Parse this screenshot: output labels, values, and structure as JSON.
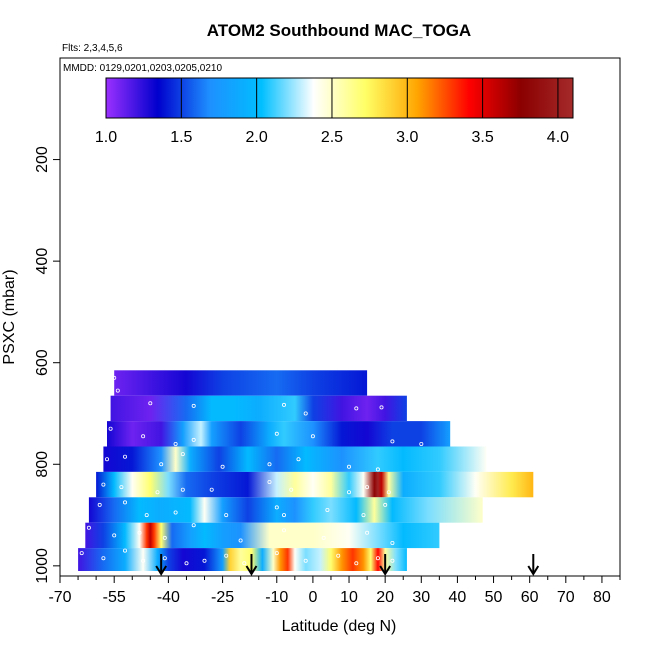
{
  "chart_data": {
    "type": "heatmap",
    "title": "ATOM2 Southbound MAC_TOGA",
    "flights_label": "Flts: 2,3,4,5,6",
    "dates_label": "MMDD: 0129,0201,0203,0205,0210",
    "xlabel": "Latitude (deg N)",
    "ylabel": "PSXC (mbar)",
    "xlim": [
      -70,
      85
    ],
    "ylim": [
      1020,
      0
    ],
    "x_ticks": [
      -70,
      -55,
      -40,
      -25,
      -10,
      0,
      10,
      20,
      30,
      40,
      50,
      60,
      70,
      80
    ],
    "x_ticks_minor": [
      -65,
      -60,
      -50,
      -45,
      -35,
      -30,
      -20,
      -15,
      -5,
      5,
      15,
      25,
      35,
      45,
      55,
      65,
      75,
      85
    ],
    "y_ticks": [
      200,
      400,
      600,
      800,
      1000
    ],
    "colorbar": {
      "range": [
        1.0,
        4.1
      ],
      "ticks": [
        1.0,
        1.5,
        2.0,
        2.5,
        3.0,
        3.5,
        4.0
      ],
      "tick_labels": [
        "1.0",
        "1.5",
        "2.0",
        "2.5",
        "3.0",
        "3.5",
        "4.0"
      ],
      "colors": [
        "#9b30ff",
        "#0000cd",
        "#1e90ff",
        "#00bfff",
        "#ffffff",
        "#ffff66",
        "#ffa500",
        "#ff0000",
        "#8b0000",
        "#a52a2a"
      ]
    },
    "rows": [
      {
        "p_top": 615,
        "p_bot": 665,
        "lat_start": -55,
        "lat_end": 15,
        "stops": [
          [
            -55,
            1.1
          ],
          [
            -45,
            1.2
          ],
          [
            -35,
            1.3
          ],
          [
            -25,
            1.5
          ],
          [
            -10,
            1.6
          ],
          [
            0,
            1.5
          ],
          [
            15,
            1.4
          ]
        ]
      },
      {
        "p_top": 665,
        "p_bot": 715,
        "lat_start": -56,
        "lat_end": 26,
        "stops": [
          [
            -56,
            1.2
          ],
          [
            -45,
            1.1
          ],
          [
            -35,
            1.6
          ],
          [
            -28,
            2.0
          ],
          [
            -22,
            2.0
          ],
          [
            -15,
            1.9
          ],
          [
            -5,
            2.1
          ],
          [
            0,
            1.5
          ],
          [
            8,
            1.2
          ],
          [
            15,
            1.1
          ],
          [
            20,
            1.2
          ],
          [
            26,
            1.5
          ]
        ]
      },
      {
        "p_top": 715,
        "p_bot": 765,
        "lat_start": -57,
        "lat_end": 38,
        "stops": [
          [
            -57,
            1.3
          ],
          [
            -50,
            1.1
          ],
          [
            -42,
            1.2
          ],
          [
            -36,
            1.8
          ],
          [
            -31,
            2.3
          ],
          [
            -28,
            1.8
          ],
          [
            -20,
            1.5
          ],
          [
            -12,
            1.9
          ],
          [
            -8,
            2.1
          ],
          [
            0,
            1.7
          ],
          [
            8,
            1.4
          ],
          [
            15,
            1.3
          ],
          [
            22,
            1.5
          ],
          [
            30,
            1.5
          ],
          [
            38,
            1.8
          ]
        ]
      },
      {
        "p_top": 765,
        "p_bot": 815,
        "lat_start": -58,
        "lat_end": 48,
        "stops": [
          [
            -58,
            1.3
          ],
          [
            -50,
            1.4
          ],
          [
            -42,
            1.7
          ],
          [
            -38,
            2.5
          ],
          [
            -34,
            1.9
          ],
          [
            -26,
            1.5
          ],
          [
            -18,
            2.0
          ],
          [
            -10,
            1.6
          ],
          [
            -2,
            2.0
          ],
          [
            8,
            1.7
          ],
          [
            18,
            2.1
          ],
          [
            25,
            2.0
          ],
          [
            35,
            2.1
          ],
          [
            48,
            2.4
          ]
        ]
      },
      {
        "p_top": 815,
        "p_bot": 865,
        "lat_start": -60,
        "lat_end": 61,
        "stops": [
          [
            -60,
            1.4
          ],
          [
            -55,
            2.0
          ],
          [
            -50,
            2.4
          ],
          [
            -45,
            2.7
          ],
          [
            -40,
            2.2
          ],
          [
            -35,
            1.6
          ],
          [
            -28,
            1.5
          ],
          [
            -18,
            1.4
          ],
          [
            -10,
            2.3
          ],
          [
            -5,
            2.6
          ],
          [
            0,
            2.4
          ],
          [
            5,
            2.6
          ],
          [
            10,
            2.1
          ],
          [
            14,
            2.4
          ],
          [
            17,
            3.8
          ],
          [
            18,
            4.05
          ],
          [
            19,
            3.6
          ],
          [
            21,
            2.6
          ],
          [
            25,
            1.9
          ],
          [
            35,
            2.1
          ],
          [
            45,
            2.4
          ],
          [
            55,
            2.8
          ],
          [
            61,
            3.0
          ]
        ]
      },
      {
        "p_top": 865,
        "p_bot": 915,
        "lat_start": -62,
        "lat_end": 47,
        "stops": [
          [
            -62,
            1.3
          ],
          [
            -55,
            1.6
          ],
          [
            -48,
            2.0
          ],
          [
            -42,
            1.9
          ],
          [
            -34,
            2.0
          ],
          [
            -30,
            2.4
          ],
          [
            -25,
            1.8
          ],
          [
            -18,
            1.5
          ],
          [
            -10,
            1.9
          ],
          [
            -5,
            1.7
          ],
          [
            0,
            2.1
          ],
          [
            5,
            2.2
          ],
          [
            12,
            2.0
          ],
          [
            17,
            2.6
          ],
          [
            22,
            2.0
          ],
          [
            32,
            2.2
          ],
          [
            47,
            2.5
          ]
        ]
      },
      {
        "p_top": 915,
        "p_bot": 965,
        "lat_start": -63,
        "lat_end": 35,
        "stops": [
          [
            -63,
            1.2
          ],
          [
            -58,
            1.5
          ],
          [
            -52,
            2.0
          ],
          [
            -48,
            2.4
          ],
          [
            -46,
            3.3
          ],
          [
            -45,
            3.6
          ],
          [
            -44,
            3.3
          ],
          [
            -42,
            2.7
          ],
          [
            -39,
            1.6
          ],
          [
            -34,
            1.8
          ],
          [
            -30,
            2.0
          ],
          [
            -25,
            1.8
          ],
          [
            -20,
            1.7
          ],
          [
            -12,
            2.5
          ],
          [
            0,
            2.5
          ],
          [
            10,
            2.4
          ],
          [
            18,
            2.2
          ],
          [
            25,
            2.0
          ],
          [
            35,
            2.1
          ]
        ]
      },
      {
        "p_top": 965,
        "p_bot": 1010,
        "lat_start": -65,
        "lat_end": 26,
        "stops": [
          [
            -65,
            1.2
          ],
          [
            -58,
            1.6
          ],
          [
            -52,
            1.9
          ],
          [
            -47,
            2.4
          ],
          [
            -43,
            1.9
          ],
          [
            -40,
            1.5
          ],
          [
            -36,
            1.3
          ],
          [
            -30,
            1.4
          ],
          [
            -25,
            1.8
          ],
          [
            -23,
            2.9
          ],
          [
            -20,
            2.6
          ],
          [
            -17,
            2.7
          ],
          [
            -14,
            1.9
          ],
          [
            -11,
            2.5
          ],
          [
            -9,
            3.1
          ],
          [
            -7,
            3.3
          ],
          [
            -5,
            2.4
          ],
          [
            -2,
            2.2
          ],
          [
            2,
            2.3
          ],
          [
            5,
            2.7
          ],
          [
            8,
            3.1
          ],
          [
            11,
            3.3
          ],
          [
            14,
            3.1
          ],
          [
            16,
            2.7
          ],
          [
            18,
            3.4
          ],
          [
            20,
            2.6
          ],
          [
            23,
            2.2
          ],
          [
            26,
            2.0
          ]
        ]
      }
    ],
    "sample_points": [
      [
        -55,
        630
      ],
      [
        -54,
        655
      ],
      [
        -45,
        680
      ],
      [
        -33,
        685
      ],
      [
        -8,
        683
      ],
      [
        -2,
        700
      ],
      [
        12,
        690
      ],
      [
        19,
        688
      ],
      [
        -56,
        730
      ],
      [
        -47,
        745
      ],
      [
        -38,
        760
      ],
      [
        -33,
        752
      ],
      [
        -10,
        740
      ],
      [
        0,
        745
      ],
      [
        22,
        755
      ],
      [
        30,
        760
      ],
      [
        -57,
        790
      ],
      [
        -52,
        785
      ],
      [
        -42,
        800
      ],
      [
        -36,
        780
      ],
      [
        -25,
        805
      ],
      [
        -12,
        800
      ],
      [
        -4,
        790
      ],
      [
        10,
        805
      ],
      [
        18,
        810
      ],
      [
        -58,
        840
      ],
      [
        -53,
        845
      ],
      [
        -43,
        855
      ],
      [
        -36,
        850
      ],
      [
        -28,
        850
      ],
      [
        -12,
        835
      ],
      [
        -6,
        850
      ],
      [
        10,
        855
      ],
      [
        15,
        845
      ],
      [
        21,
        855
      ],
      [
        -59,
        880
      ],
      [
        -52,
        875
      ],
      [
        -46,
        900
      ],
      [
        -38,
        895
      ],
      [
        -24,
        900
      ],
      [
        -10,
        885
      ],
      [
        -8,
        900
      ],
      [
        4,
        890
      ],
      [
        14,
        900
      ],
      [
        20,
        880
      ],
      [
        -62,
        925
      ],
      [
        -55,
        940
      ],
      [
        -48,
        935
      ],
      [
        -41,
        945
      ],
      [
        -33,
        920
      ],
      [
        -20,
        950
      ],
      [
        -8,
        930
      ],
      [
        3,
        945
      ],
      [
        15,
        935
      ],
      [
        22,
        955
      ],
      [
        -64,
        975
      ],
      [
        -58,
        985
      ],
      [
        -52,
        970
      ],
      [
        -47,
        990
      ],
      [
        -41,
        985
      ],
      [
        -35,
        995
      ],
      [
        -30,
        990
      ],
      [
        -24,
        980
      ],
      [
        -19,
        995
      ],
      [
        -10,
        975
      ],
      [
        -2,
        990
      ],
      [
        7,
        980
      ],
      [
        12,
        995
      ],
      [
        18,
        985
      ],
      [
        22,
        990
      ]
    ],
    "flight_arrows": [
      -42,
      -17,
      20,
      61
    ]
  }
}
